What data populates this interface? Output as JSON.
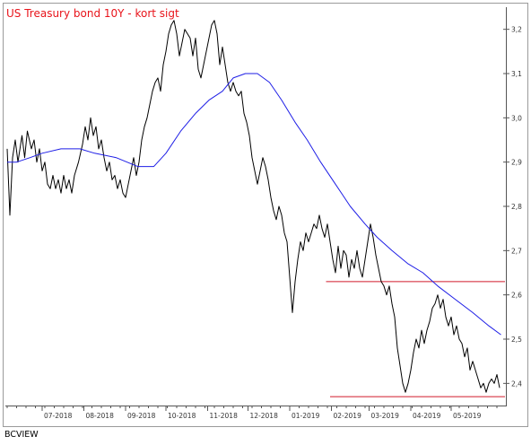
{
  "chart_data": {
    "type": "line",
    "title": "US Treasury bond 10Y - kort sigt",
    "footer": "BCVIEW",
    "xlabel": "",
    "ylabel": "",
    "x_range": [
      "2018-06-05",
      "2019-06-10"
    ],
    "ylim": [
      2.35,
      3.25
    ],
    "y_ticks": [
      2.4,
      2.5,
      2.6,
      2.7,
      2.8,
      2.9,
      3.0,
      3.1,
      3.2
    ],
    "y_tick_labels": [
      "2,4",
      "2,5",
      "2,6",
      "2,7",
      "2,8",
      "2,9",
      "3,0",
      "3,1",
      "3,2"
    ],
    "x_ticks": [
      {
        "date": "2018-07-01",
        "label": "07-2018"
      },
      {
        "date": "2018-08-01",
        "label": "08-2018"
      },
      {
        "date": "2018-09-01",
        "label": "09-2018"
      },
      {
        "date": "2018-10-01",
        "label": "10-2018"
      },
      {
        "date": "2018-11-01",
        "label": "11-2018"
      },
      {
        "date": "2018-12-01",
        "label": "12-2018"
      },
      {
        "date": "2019-01-01",
        "label": "01-2019"
      },
      {
        "date": "2019-02-01",
        "label": "02-2019"
      },
      {
        "date": "2019-03-01",
        "label": "03-2019"
      },
      {
        "date": "2019-04-01",
        "label": "04-2019"
      },
      {
        "date": "2019-05-01",
        "label": "05-2019"
      }
    ],
    "grid": false,
    "y_axis_position": "right",
    "series": [
      {
        "id": "yield",
        "color": "#000000",
        "points": [
          [
            "2018-06-05",
            2.93
          ],
          [
            "2018-06-07",
            2.78
          ],
          [
            "2018-06-09",
            2.91
          ],
          [
            "2018-06-11",
            2.95
          ],
          [
            "2018-06-13",
            2.9
          ],
          [
            "2018-06-16",
            2.96
          ],
          [
            "2018-06-18",
            2.91
          ],
          [
            "2018-06-20",
            2.97
          ],
          [
            "2018-06-23",
            2.93
          ],
          [
            "2018-06-25",
            2.95
          ],
          [
            "2018-06-27",
            2.9
          ],
          [
            "2018-06-29",
            2.93
          ],
          [
            "2018-07-01",
            2.88
          ],
          [
            "2018-07-03",
            2.9
          ],
          [
            "2018-07-05",
            2.85
          ],
          [
            "2018-07-07",
            2.84
          ],
          [
            "2018-07-09",
            2.87
          ],
          [
            "2018-07-11",
            2.84
          ],
          [
            "2018-07-13",
            2.86
          ],
          [
            "2018-07-15",
            2.83
          ],
          [
            "2018-07-17",
            2.87
          ],
          [
            "2018-07-19",
            2.84
          ],
          [
            "2018-07-21",
            2.86
          ],
          [
            "2018-07-23",
            2.83
          ],
          [
            "2018-07-25",
            2.87
          ],
          [
            "2018-07-28",
            2.9
          ],
          [
            "2018-07-31",
            2.94
          ],
          [
            "2018-08-02",
            2.98
          ],
          [
            "2018-08-04",
            2.95
          ],
          [
            "2018-08-06",
            3.0
          ],
          [
            "2018-08-08",
            2.96
          ],
          [
            "2018-08-10",
            2.98
          ],
          [
            "2018-08-12",
            2.93
          ],
          [
            "2018-08-14",
            2.95
          ],
          [
            "2018-08-16",
            2.91
          ],
          [
            "2018-08-18",
            2.88
          ],
          [
            "2018-08-20",
            2.9
          ],
          [
            "2018-08-22",
            2.86
          ],
          [
            "2018-08-24",
            2.87
          ],
          [
            "2018-08-26",
            2.84
          ],
          [
            "2018-08-28",
            2.86
          ],
          [
            "2018-08-30",
            2.83
          ],
          [
            "2018-09-01",
            2.82
          ],
          [
            "2018-09-03",
            2.85
          ],
          [
            "2018-09-05",
            2.88
          ],
          [
            "2018-09-07",
            2.91
          ],
          [
            "2018-09-09",
            2.87
          ],
          [
            "2018-09-11",
            2.9
          ],
          [
            "2018-09-13",
            2.95
          ],
          [
            "2018-09-15",
            2.98
          ],
          [
            "2018-09-17",
            3.0
          ],
          [
            "2018-09-19",
            3.03
          ],
          [
            "2018-09-21",
            3.06
          ],
          [
            "2018-09-23",
            3.08
          ],
          [
            "2018-09-25",
            3.09
          ],
          [
            "2018-09-27",
            3.06
          ],
          [
            "2018-09-29",
            3.12
          ],
          [
            "2018-10-01",
            3.15
          ],
          [
            "2018-10-03",
            3.19
          ],
          [
            "2018-10-05",
            3.21
          ],
          [
            "2018-10-07",
            3.22
          ],
          [
            "2018-10-09",
            3.19
          ],
          [
            "2018-10-11",
            3.14
          ],
          [
            "2018-10-13",
            3.17
          ],
          [
            "2018-10-15",
            3.2
          ],
          [
            "2018-10-17",
            3.19
          ],
          [
            "2018-10-19",
            3.18
          ],
          [
            "2018-10-21",
            3.14
          ],
          [
            "2018-10-23",
            3.18
          ],
          [
            "2018-10-25",
            3.11
          ],
          [
            "2018-10-27",
            3.09
          ],
          [
            "2018-10-29",
            3.12
          ],
          [
            "2018-10-31",
            3.15
          ],
          [
            "2018-11-02",
            3.18
          ],
          [
            "2018-11-04",
            3.21
          ],
          [
            "2018-11-06",
            3.22
          ],
          [
            "2018-11-08",
            3.19
          ],
          [
            "2018-11-10",
            3.12
          ],
          [
            "2018-11-12",
            3.16
          ],
          [
            "2018-11-14",
            3.12
          ],
          [
            "2018-11-16",
            3.08
          ],
          [
            "2018-11-18",
            3.06
          ],
          [
            "2018-11-20",
            3.08
          ],
          [
            "2018-11-22",
            3.06
          ],
          [
            "2018-11-24",
            3.05
          ],
          [
            "2018-11-26",
            3.06
          ],
          [
            "2018-11-28",
            3.01
          ],
          [
            "2018-11-30",
            2.99
          ],
          [
            "2018-12-02",
            2.96
          ],
          [
            "2018-12-04",
            2.91
          ],
          [
            "2018-12-06",
            2.88
          ],
          [
            "2018-12-08",
            2.85
          ],
          [
            "2018-12-10",
            2.88
          ],
          [
            "2018-12-12",
            2.91
          ],
          [
            "2018-12-14",
            2.89
          ],
          [
            "2018-12-16",
            2.86
          ],
          [
            "2018-12-18",
            2.82
          ],
          [
            "2018-12-20",
            2.79
          ],
          [
            "2018-12-22",
            2.77
          ],
          [
            "2018-12-24",
            2.8
          ],
          [
            "2018-12-26",
            2.78
          ],
          [
            "2018-12-28",
            2.74
          ],
          [
            "2018-12-30",
            2.72
          ],
          [
            "2019-01-01",
            2.64
          ],
          [
            "2019-01-03",
            2.56
          ],
          [
            "2019-01-05",
            2.63
          ],
          [
            "2019-01-07",
            2.68
          ],
          [
            "2019-01-09",
            2.72
          ],
          [
            "2019-01-11",
            2.7
          ],
          [
            "2019-01-13",
            2.74
          ],
          [
            "2019-01-15",
            2.72
          ],
          [
            "2019-01-17",
            2.74
          ],
          [
            "2019-01-19",
            2.76
          ],
          [
            "2019-01-21",
            2.75
          ],
          [
            "2019-01-23",
            2.78
          ],
          [
            "2019-01-25",
            2.75
          ],
          [
            "2019-01-27",
            2.73
          ],
          [
            "2019-01-29",
            2.76
          ],
          [
            "2019-01-31",
            2.72
          ],
          [
            "2019-02-02",
            2.68
          ],
          [
            "2019-02-04",
            2.65
          ],
          [
            "2019-02-06",
            2.71
          ],
          [
            "2019-02-08",
            2.66
          ],
          [
            "2019-02-10",
            2.7
          ],
          [
            "2019-02-12",
            2.69
          ],
          [
            "2019-02-14",
            2.64
          ],
          [
            "2019-02-16",
            2.68
          ],
          [
            "2019-02-18",
            2.66
          ],
          [
            "2019-02-20",
            2.7
          ],
          [
            "2019-02-22",
            2.66
          ],
          [
            "2019-02-24",
            2.64
          ],
          [
            "2019-02-26",
            2.68
          ],
          [
            "2019-02-28",
            2.72
          ],
          [
            "2019-03-02",
            2.76
          ],
          [
            "2019-03-04",
            2.73
          ],
          [
            "2019-03-06",
            2.69
          ],
          [
            "2019-03-08",
            2.66
          ],
          [
            "2019-03-10",
            2.63
          ],
          [
            "2019-03-12",
            2.62
          ],
          [
            "2019-03-14",
            2.6
          ],
          [
            "2019-03-16",
            2.62
          ],
          [
            "2019-03-18",
            2.58
          ],
          [
            "2019-03-20",
            2.55
          ],
          [
            "2019-03-22",
            2.48
          ],
          [
            "2019-03-24",
            2.44
          ],
          [
            "2019-03-26",
            2.4
          ],
          [
            "2019-03-28",
            2.38
          ],
          [
            "2019-03-30",
            2.4
          ],
          [
            "2019-04-01",
            2.43
          ],
          [
            "2019-04-03",
            2.47
          ],
          [
            "2019-04-05",
            2.5
          ],
          [
            "2019-04-07",
            2.48
          ],
          [
            "2019-04-09",
            2.52
          ],
          [
            "2019-04-11",
            2.49
          ],
          [
            "2019-04-13",
            2.52
          ],
          [
            "2019-04-15",
            2.54
          ],
          [
            "2019-04-17",
            2.57
          ],
          [
            "2019-04-19",
            2.58
          ],
          [
            "2019-04-21",
            2.6
          ],
          [
            "2019-04-23",
            2.57
          ],
          [
            "2019-04-25",
            2.59
          ],
          [
            "2019-04-27",
            2.55
          ],
          [
            "2019-04-29",
            2.53
          ],
          [
            "2019-05-01",
            2.55
          ],
          [
            "2019-05-03",
            2.51
          ],
          [
            "2019-05-05",
            2.53
          ],
          [
            "2019-05-07",
            2.5
          ],
          [
            "2019-05-09",
            2.49
          ],
          [
            "2019-05-11",
            2.46
          ],
          [
            "2019-05-13",
            2.48
          ],
          [
            "2019-05-15",
            2.43
          ],
          [
            "2019-05-17",
            2.45
          ],
          [
            "2019-05-19",
            2.43
          ],
          [
            "2019-05-21",
            2.41
          ],
          [
            "2019-05-23",
            2.39
          ],
          [
            "2019-05-25",
            2.4
          ],
          [
            "2019-05-27",
            2.38
          ],
          [
            "2019-05-29",
            2.4
          ],
          [
            "2019-05-31",
            2.41
          ],
          [
            "2019-06-02",
            2.4
          ],
          [
            "2019-06-04",
            2.42
          ],
          [
            "2019-06-06",
            2.39
          ]
        ]
      },
      {
        "id": "moving-average",
        "color": "#1e1ee6",
        "points": [
          [
            "2018-06-05",
            2.9
          ],
          [
            "2018-06-12",
            2.9
          ],
          [
            "2018-06-22",
            2.91
          ],
          [
            "2018-07-01",
            2.92
          ],
          [
            "2018-07-15",
            2.93
          ],
          [
            "2018-07-29",
            2.93
          ],
          [
            "2018-08-09",
            2.92
          ],
          [
            "2018-08-25",
            2.91
          ],
          [
            "2018-09-10",
            2.89
          ],
          [
            "2018-09-22",
            2.89
          ],
          [
            "2018-10-01",
            2.92
          ],
          [
            "2018-10-12",
            2.97
          ],
          [
            "2018-10-23",
            3.01
          ],
          [
            "2018-11-02",
            3.04
          ],
          [
            "2018-11-12",
            3.06
          ],
          [
            "2018-11-20",
            3.09
          ],
          [
            "2018-11-29",
            3.1
          ],
          [
            "2018-12-08",
            3.1
          ],
          [
            "2018-12-17",
            3.08
          ],
          [
            "2018-12-26",
            3.04
          ],
          [
            "2019-01-05",
            2.99
          ],
          [
            "2019-01-14",
            2.95
          ],
          [
            "2019-01-24",
            2.9
          ],
          [
            "2019-02-04",
            2.85
          ],
          [
            "2019-02-15",
            2.8
          ],
          [
            "2019-02-26",
            2.76
          ],
          [
            "2019-03-07",
            2.73
          ],
          [
            "2019-03-18",
            2.7
          ],
          [
            "2019-03-30",
            2.67
          ],
          [
            "2019-04-10",
            2.65
          ],
          [
            "2019-04-21",
            2.62
          ],
          [
            "2019-05-04",
            2.59
          ],
          [
            "2019-05-17",
            2.56
          ],
          [
            "2019-05-29",
            2.53
          ],
          [
            "2019-06-07",
            2.51
          ]
        ]
      }
    ],
    "annotations": [
      {
        "type": "horizontal-line",
        "value": 2.63,
        "from": "2019-01-28",
        "to": "2019-06-10",
        "color": "#d11a2a"
      },
      {
        "type": "horizontal-line",
        "value": 2.37,
        "from": "2019-01-31",
        "to": "2019-06-10",
        "color": "#d11a2a"
      }
    ]
  }
}
